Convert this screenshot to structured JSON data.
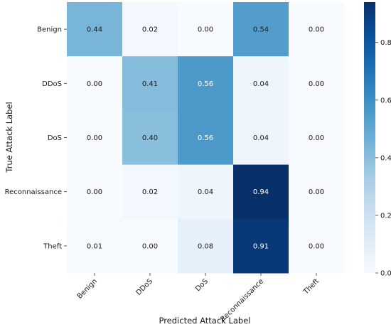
{
  "chart_data": {
    "type": "heatmap",
    "title": "",
    "xlabel": "Predicted Attack Label",
    "ylabel": "True Attack Label",
    "x_categories": [
      "Benign",
      "DDoS",
      "DoS",
      "Reconnaissance",
      "Theft"
    ],
    "y_categories": [
      "Benign",
      "DDoS",
      "DoS",
      "Reconnaissance",
      "Theft"
    ],
    "values": [
      [
        0.44,
        0.02,
        0.0,
        0.54,
        0.0
      ],
      [
        0.0,
        0.41,
        0.56,
        0.04,
        0.0
      ],
      [
        0.0,
        0.4,
        0.56,
        0.04,
        0.0
      ],
      [
        0.0,
        0.02,
        0.04,
        0.94,
        0.0
      ],
      [
        0.01,
        0.0,
        0.08,
        0.91,
        0.0
      ]
    ],
    "colormap": "Blues",
    "colorbar": {
      "range": [
        0.0,
        0.94
      ],
      "ticks": [
        0.0,
        0.2,
        0.4,
        0.6,
        0.8
      ],
      "tick_labels": [
        "0.0",
        "0.2",
        "0.4",
        "0.6",
        "0.8"
      ]
    },
    "cell_label_format": "2 decimals"
  }
}
